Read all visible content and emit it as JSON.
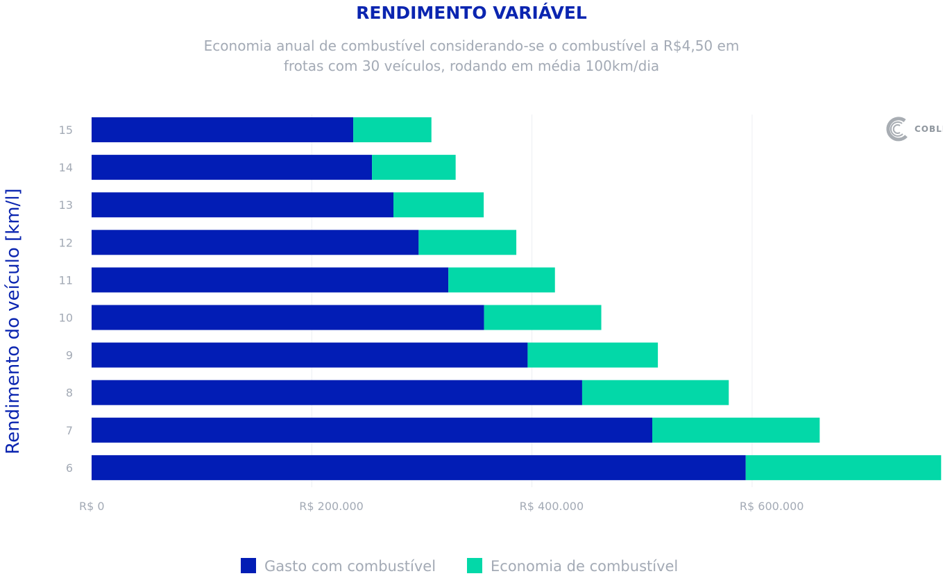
{
  "chart_data": {
    "type": "bar",
    "orientation": "horizontal",
    "stacked": true,
    "title": "RENDIMENTO VARIÁVEL",
    "subtitle": [
      "Economia anual de combustível considerando-se o combustível a R$4,50 em",
      "frotas com 30 veículos, rodando em média 100km/dia"
    ],
    "ylabel": "Rendimento do veículo [km/l]",
    "xlabel": "",
    "categories": [
      "15",
      "14",
      "13",
      "12",
      "11",
      "10",
      "9",
      "8",
      "7",
      "6"
    ],
    "series": [
      {
        "name": "Gasto com combustível",
        "color": "#021db5",
        "values": [
          237700,
          254700,
          274200,
          297100,
          324100,
          356500,
          396100,
          445600,
          509300,
          594200
        ]
      },
      {
        "name": "Economia de combustível",
        "color": "#03d8a8",
        "values": [
          71000,
          76000,
          82000,
          88700,
          96800,
          106500,
          118300,
          133200,
          152100,
          177500
        ]
      }
    ],
    "xlim": [
      0,
      771700
    ],
    "xticks": [
      0,
      200000,
      400000,
      600000
    ],
    "xtick_labels": [
      "R$ 0",
      "R$ 200.000",
      "R$ 400.000",
      "R$ 600.000"
    ],
    "grid": "vertical",
    "legend": "bottom"
  },
  "logo": {
    "text": "COBLI"
  }
}
